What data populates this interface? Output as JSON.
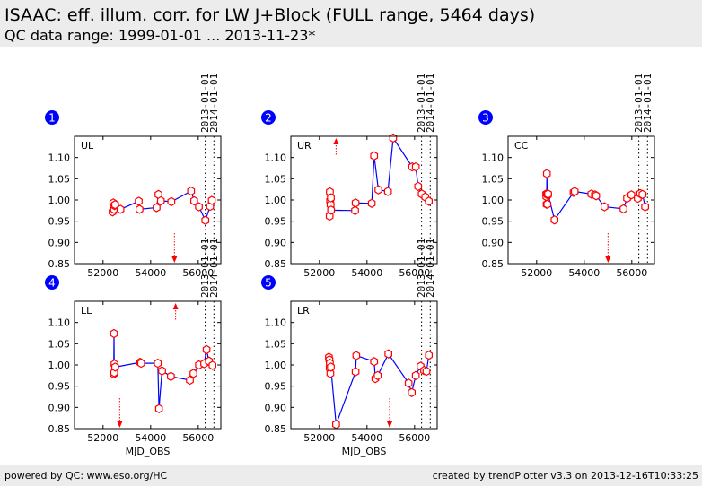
{
  "header": {
    "title": "ISAAC: eff. illum. corr. for LW J+Block (FULL range, 5464 days)",
    "subtitle": "QC data range: 1999-01-01 ... 2013-11-23*"
  },
  "footer": {
    "left": "powered by QC: www.eso.org/HC",
    "right": "created by trendPlotter v3.3 on 2013-12-16T10:33:25"
  },
  "colors": {
    "line": "#0000ff",
    "marker": "#ff0000",
    "badge": "#0000ff",
    "header_bg": "#ececec"
  },
  "chart_data": [
    {
      "type": "line",
      "index": "1",
      "label": "UL",
      "xlabel": "",
      "ylabel": "",
      "xlim": [
        50800,
        56950
      ],
      "ylim": [
        0.85,
        1.15
      ],
      "xticks": [
        52000,
        54000,
        56000
      ],
      "yticks": [
        0.85,
        0.9,
        0.95,
        1.0,
        1.05,
        1.1
      ],
      "vlines": [
        {
          "x": 56294,
          "label": "2013-01-01"
        },
        {
          "x": 56659,
          "label": "2014-01-01"
        }
      ],
      "x": [
        52400,
        52430,
        52460,
        52480,
        52510,
        52730,
        53500,
        53530,
        54250,
        54330,
        54430,
        54870,
        55700,
        55830,
        56030,
        56300,
        56500,
        56570
      ],
      "y": [
        0.972,
        0.993,
        0.978,
        0.987,
        0.989,
        0.978,
        0.997,
        0.978,
        0.982,
        1.013,
        0.998,
        0.996,
        1.021,
        0.998,
        0.984,
        0.952,
        0.985,
        0.999
      ],
      "offscale": [
        {
          "x": 55000,
          "dir": "down"
        }
      ]
    },
    {
      "type": "line",
      "index": "2",
      "label": "UR",
      "xlabel": "",
      "ylabel": "",
      "xlim": [
        50800,
        56950
      ],
      "ylim": [
        0.85,
        1.15
      ],
      "xticks": [
        52000,
        54000,
        56000
      ],
      "yticks": [
        0.85,
        0.9,
        0.95,
        1.0,
        1.05,
        1.1
      ],
      "vlines": [
        {
          "x": 56294,
          "label": "2013-01-01"
        },
        {
          "x": 56659,
          "label": "2014-01-01"
        }
      ],
      "x": [
        52430,
        52440,
        52450,
        52470,
        52480,
        52490,
        53500,
        53520,
        54200,
        54300,
        54480,
        54880,
        55100,
        55900,
        56050,
        56150,
        56300,
        56450,
        56600
      ],
      "y": [
        0.962,
        1.019,
        0.998,
        0.989,
        1.005,
        0.976,
        0.975,
        0.993,
        0.992,
        1.104,
        1.024,
        1.02,
        1.146,
        1.078,
        1.078,
        1.032,
        1.014,
        1.007,
        0.997
      ],
      "offscale": [
        {
          "x": 52700,
          "dir": "up"
        }
      ]
    },
    {
      "type": "line",
      "index": "3",
      "label": "CC",
      "xlabel": "",
      "ylabel": "",
      "xlim": [
        50800,
        56950
      ],
      "ylim": [
        0.85,
        1.15
      ],
      "xticks": [
        52000,
        54000,
        56000
      ],
      "yticks": [
        0.85,
        0.9,
        0.95,
        1.0,
        1.05,
        1.1
      ],
      "vlines": [
        {
          "x": 56294,
          "label": "2013-01-01"
        },
        {
          "x": 56659,
          "label": "2014-01-01"
        }
      ],
      "x": [
        52400,
        52410,
        52420,
        52430,
        52440,
        52450,
        52470,
        52480,
        52750,
        53550,
        53600,
        54300,
        54450,
        54500,
        54850,
        55650,
        55800,
        55980,
        56250,
        56350,
        56450,
        56560
      ],
      "y": [
        1.014,
        1.008,
        0.99,
        1.062,
        1.015,
        0.99,
        1.012,
        1.014,
        0.953,
        1.018,
        1.02,
        1.014,
        1.012,
        1.01,
        0.984,
        0.979,
        1.004,
        1.012,
        1.004,
        1.015,
        1.013,
        0.984
      ],
      "offscale": [
        {
          "x": 55000,
          "dir": "down"
        }
      ]
    },
    {
      "type": "line",
      "index": "4",
      "label": "LL",
      "xlabel": "MJD_OBS",
      "ylabel": "",
      "xlim": [
        50800,
        56950
      ],
      "ylim": [
        0.85,
        1.15
      ],
      "xticks": [
        52000,
        54000,
        56000
      ],
      "yticks": [
        0.85,
        0.9,
        0.95,
        1.0,
        1.05,
        1.1
      ],
      "vlines": [
        {
          "x": 56294,
          "label": "2013-01-01"
        },
        {
          "x": 56659,
          "label": "2014-01-01"
        }
      ],
      "x": [
        52450,
        52460,
        52470,
        52480,
        52510,
        53560,
        53600,
        54300,
        54350,
        54480,
        54850,
        55650,
        55800,
        56030,
        56250,
        56350,
        56450,
        56600
      ],
      "y": [
        0.979,
        1.074,
        0.982,
        1.002,
        0.995,
        1.006,
        1.004,
        1.004,
        0.897,
        0.986,
        0.973,
        0.964,
        0.98,
        1.0,
        1.003,
        1.036,
        1.009,
        0.999
      ],
      "offscale": [
        {
          "x": 52700,
          "dir": "down"
        },
        {
          "x": 55050,
          "dir": "up"
        }
      ]
    },
    {
      "type": "line",
      "index": "5",
      "label": "LR",
      "xlabel": "MJD_OBS",
      "ylabel": "",
      "xlim": [
        50800,
        56950
      ],
      "ylim": [
        0.85,
        1.15
      ],
      "xticks": [
        52000,
        54000,
        56000
      ],
      "yticks": [
        0.85,
        0.9,
        0.95,
        1.0,
        1.05,
        1.1
      ],
      "vlines": [
        {
          "x": 56294,
          "label": "2013-01-01"
        },
        {
          "x": 56659,
          "label": "2014-01-01"
        }
      ],
      "x": [
        52400,
        52420,
        52430,
        52440,
        52460,
        52480,
        52700,
        53520,
        53550,
        54300,
        54350,
        54450,
        54900,
        55750,
        55880,
        56050,
        56250,
        56400,
        56500,
        56600
      ],
      "y": [
        1.018,
        1.012,
        0.993,
        1.004,
        0.98,
        0.995,
        0.86,
        0.984,
        1.022,
        1.008,
        0.968,
        0.975,
        1.026,
        0.957,
        0.935,
        0.975,
        0.997,
        0.987,
        0.985,
        1.023
      ],
      "offscale": [
        {
          "x": 54950,
          "dir": "down"
        }
      ]
    }
  ]
}
